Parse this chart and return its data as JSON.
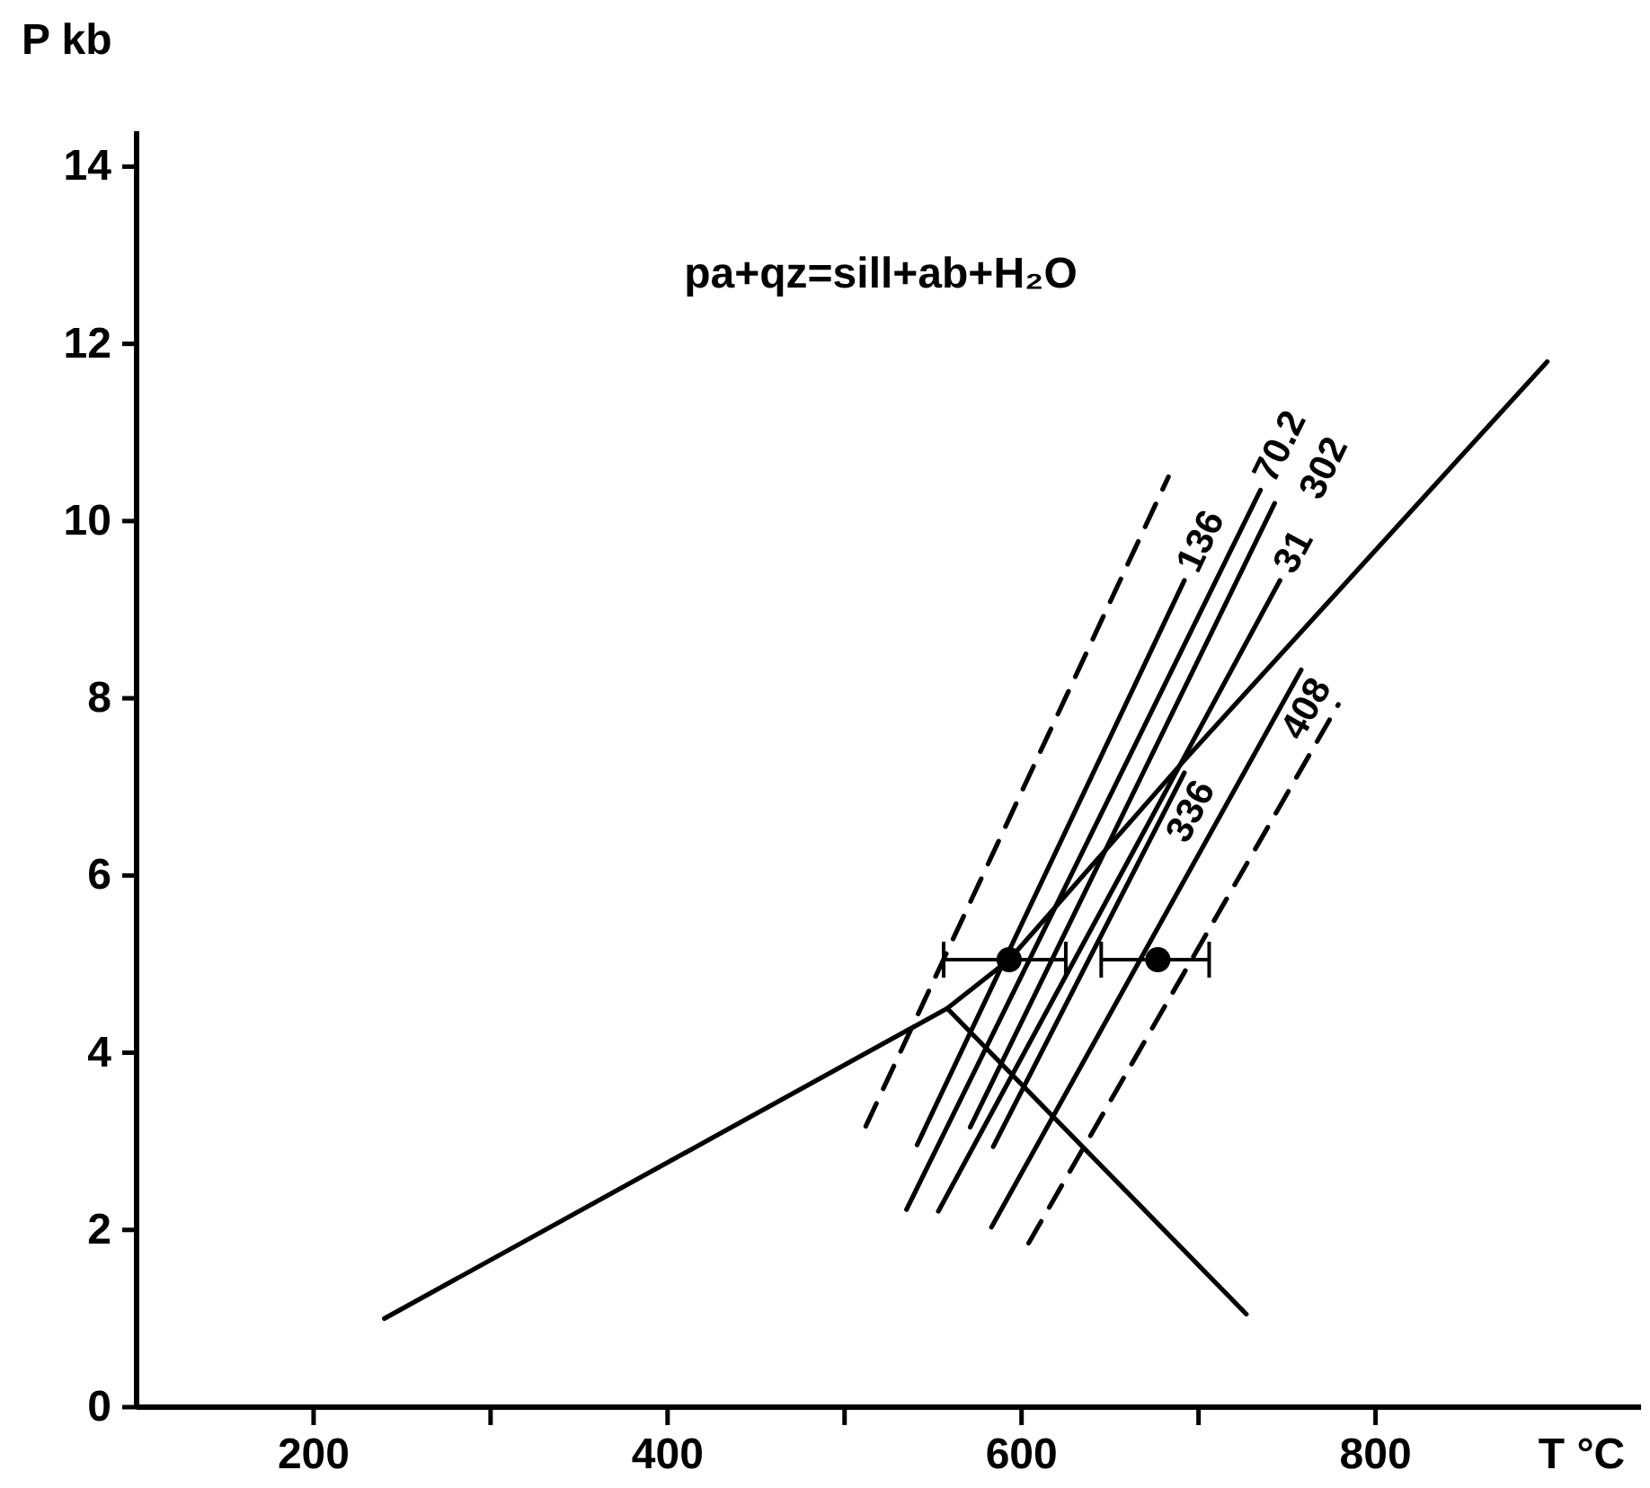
{
  "chart_data": {
    "type": "line",
    "title": "pa+qz=sill+ab+H₂O",
    "xlabel": "T °C",
    "ylabel": "P kb",
    "xlim": [
      100,
      950
    ],
    "ylim": [
      0,
      14.4
    ],
    "xticks": [
      200,
      {
        "value": 300,
        "label": null
      },
      400,
      {
        "value": 500,
        "label": null
      },
      600,
      {
        "value": 700,
        "label": null
      },
      800
    ],
    "yticks": [
      0,
      2,
      4,
      6,
      8,
      10,
      12,
      14
    ],
    "grid": false,
    "legend": false,
    "marker": "none",
    "line_style": "solid",
    "series": [
      {
        "color": "#000000",
        "x": [
          240,
          558,
          593,
          692,
          897
        ],
        "values": [
          1.0,
          4.5,
          5.05,
          7.3,
          11.8
        ]
      },
      {
        "color": "#000000",
        "x": [
          558,
          727
        ],
        "values": [
          4.5,
          1.05
        ]
      },
      {
        "color": "#000000",
        "line_style": "dashed",
        "x": [
          512,
          683
        ],
        "values": [
          3.17,
          10.5
        ]
      },
      {
        "color": "#000000",
        "line_style": "dashed",
        "x": [
          604,
          779
        ],
        "values": [
          1.85,
          7.93
        ]
      },
      {
        "name": "136",
        "color": "#000000",
        "x": [
          541,
          692
        ],
        "values": [
          2.96,
          9.33
        ]
      },
      {
        "name": "70.2",
        "color": "#000000",
        "x": [
          535,
          735
        ],
        "values": [
          2.23,
          10.35
        ]
      },
      {
        "name": "302",
        "color": "#000000",
        "x": [
          571,
          743
        ],
        "values": [
          3.16,
          10.2
        ]
      },
      {
        "name": "31",
        "color": "#000000",
        "x": [
          553,
          746
        ],
        "values": [
          2.21,
          9.33
        ]
      },
      {
        "name": "336",
        "color": "#000000",
        "x": [
          584,
          692
        ],
        "values": [
          2.94,
          7.16
        ]
      },
      {
        "name": "408",
        "color": "#000000",
        "x": [
          583,
          758
        ],
        "values": [
          2.03,
          8.32
        ]
      },
      {
        "type": "scatter",
        "marker": "circle",
        "color": "#000000",
        "x": [
          593,
          677
        ],
        "values": [
          5.05,
          5.05
        ],
        "xerrors": [
          [
            556,
            625
          ],
          [
            645,
            706
          ]
        ]
      }
    ]
  }
}
